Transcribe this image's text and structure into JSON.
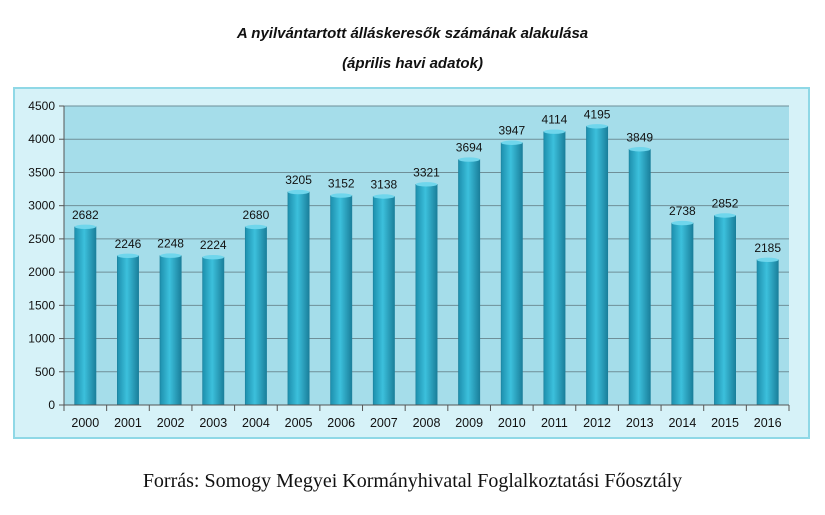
{
  "chart_data": {
    "type": "bar",
    "title": "A nyilvántartott álláskeresők számának alakulása",
    "subtitle": "(április havi adatok)",
    "categories": [
      "2000",
      "2001",
      "2002",
      "2003",
      "2004",
      "2005",
      "2006",
      "2007",
      "2008",
      "2009",
      "2010",
      "2011",
      "2012",
      "2013",
      "2014",
      "2015",
      "2016"
    ],
    "values": [
      2682,
      2246,
      2248,
      2224,
      2680,
      3205,
      3152,
      3138,
      3321,
      3694,
      3947,
      4114,
      4195,
      3849,
      2738,
      2852,
      2185
    ],
    "ylim": [
      0,
      4500
    ],
    "yticks": [
      0,
      500,
      1000,
      1500,
      2000,
      2500,
      3000,
      3500,
      4000,
      4500
    ],
    "grid": true,
    "legend": "none",
    "colors": {
      "bar": "#2ba8c6",
      "bar_dark": "#1a7f9b",
      "plot_bg": "#a5ddea",
      "grid": "#6f8f98",
      "frame": "#8fd8e6"
    }
  },
  "source": "Forrás: Somogy Megyei Kormányhivatal Foglalkoztatási Főosztály"
}
